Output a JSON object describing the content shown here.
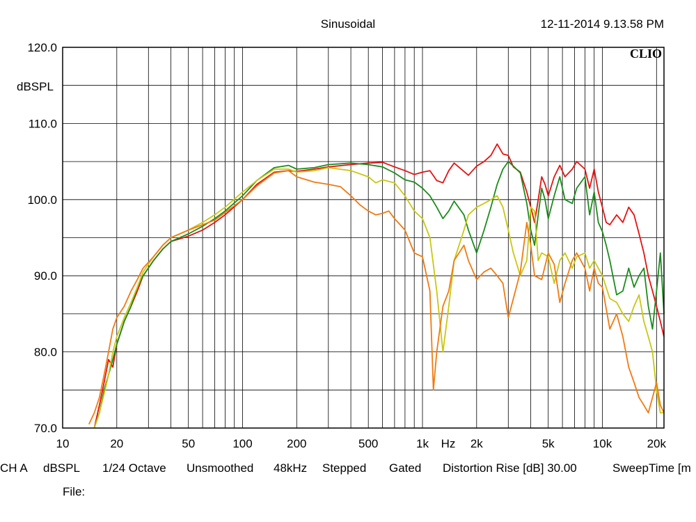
{
  "header": {
    "title": "Sinusoidal",
    "timestamp": "12-11-2014 9.13.58 PM",
    "logo": "CLIO"
  },
  "footer": {
    "status": [
      "CH A",
      "dBSPL",
      "1/24 Octave",
      "Unsmoothed",
      "48kHz",
      "Stepped",
      "Gated",
      "Distortion Rise [dB] 30.00",
      "SweepTime [m"
    ],
    "file_label": "File:"
  },
  "chart_data": {
    "type": "line",
    "title": "Sinusoidal",
    "xlabel": "Hz",
    "ylabel": "dBSPL",
    "xscale": "log",
    "xlim": [
      10,
      22000
    ],
    "ylim": [
      70,
      120
    ],
    "grid": true,
    "x_tick_labels": [
      {
        "value": 10,
        "label": "10"
      },
      {
        "value": 20,
        "label": "20"
      },
      {
        "value": 50,
        "label": "50"
      },
      {
        "value": 100,
        "label": "100"
      },
      {
        "value": 200,
        "label": "200"
      },
      {
        "value": 500,
        "label": "500"
      },
      {
        "value": 1000,
        "label": "1k"
      },
      {
        "value": 2000,
        "label": "2k"
      },
      {
        "value": 5000,
        "label": "5k"
      },
      {
        "value": 10000,
        "label": "10k"
      },
      {
        "value": 20000,
        "label": "20k"
      }
    ],
    "y_tick_labels": [
      {
        "value": 120,
        "label": "120.0"
      },
      {
        "value": 110,
        "label": "110.0"
      },
      {
        "value": 100,
        "label": "100.0"
      },
      {
        "value": 90,
        "label": "90.0"
      },
      {
        "value": 80,
        "label": "80.0"
      },
      {
        "value": 70,
        "label": "70.0"
      }
    ],
    "series": [
      {
        "color": "#e81010",
        "points": [
          [
            15,
            70
          ],
          [
            16,
            73
          ],
          [
            17,
            76
          ],
          [
            18,
            79
          ],
          [
            19,
            78
          ],
          [
            20,
            81
          ],
          [
            22,
            84
          ],
          [
            24,
            86
          ],
          [
            26,
            88
          ],
          [
            28,
            90
          ],
          [
            32,
            92
          ],
          [
            36,
            93.5
          ],
          [
            40,
            94.5
          ],
          [
            50,
            95.2
          ],
          [
            60,
            96
          ],
          [
            70,
            97
          ],
          [
            80,
            98
          ],
          [
            100,
            100
          ],
          [
            120,
            102
          ],
          [
            150,
            103.6
          ],
          [
            180,
            103.8
          ],
          [
            200,
            103.7
          ],
          [
            250,
            104
          ],
          [
            300,
            104.3
          ],
          [
            400,
            104.6
          ],
          [
            500,
            104.8
          ],
          [
            600,
            104.9
          ],
          [
            700,
            104.3
          ],
          [
            800,
            103.8
          ],
          [
            900,
            103.3
          ],
          [
            1000,
            103.6
          ],
          [
            1100,
            103.8
          ],
          [
            1200,
            102.5
          ],
          [
            1300,
            102.2
          ],
          [
            1400,
            103.8
          ],
          [
            1500,
            104.8
          ],
          [
            1700,
            103.7
          ],
          [
            1800,
            103.2
          ],
          [
            2000,
            104.4
          ],
          [
            2200,
            105
          ],
          [
            2400,
            105.8
          ],
          [
            2600,
            107.3
          ],
          [
            2800,
            106
          ],
          [
            3000,
            105.8
          ],
          [
            3200,
            104.3
          ],
          [
            3500,
            103.6
          ],
          [
            3800,
            101
          ],
          [
            4000,
            99
          ],
          [
            4200,
            97
          ],
          [
            4400,
            100
          ],
          [
            4600,
            103
          ],
          [
            4800,
            102
          ],
          [
            5000,
            100.5
          ],
          [
            5400,
            103
          ],
          [
            5800,
            104.5
          ],
          [
            6200,
            103
          ],
          [
            6800,
            104
          ],
          [
            7200,
            105
          ],
          [
            8000,
            104
          ],
          [
            8500,
            101.5
          ],
          [
            9000,
            104
          ],
          [
            9500,
            101
          ],
          [
            10000,
            99
          ],
          [
            10500,
            97
          ],
          [
            11000,
            96.7
          ],
          [
            12000,
            98
          ],
          [
            13000,
            97
          ],
          [
            14000,
            99
          ],
          [
            15000,
            98
          ],
          [
            16000,
            95.5
          ],
          [
            17000,
            93
          ],
          [
            18000,
            90
          ],
          [
            19000,
            88
          ],
          [
            20000,
            86
          ],
          [
            21000,
            84
          ],
          [
            22000,
            82
          ]
        ]
      },
      {
        "color": "#1a8c1a",
        "points": [
          [
            15,
            70
          ],
          [
            16,
            72
          ],
          [
            17,
            75
          ],
          [
            18,
            77
          ],
          [
            19,
            79
          ],
          [
            20,
            81
          ],
          [
            22,
            84
          ],
          [
            24,
            86
          ],
          [
            26,
            88.5
          ],
          [
            28,
            90
          ],
          [
            32,
            92
          ],
          [
            36,
            93.5
          ],
          [
            40,
            94.5
          ],
          [
            50,
            95.5
          ],
          [
            60,
            96.5
          ],
          [
            70,
            97.5
          ],
          [
            80,
            98.5
          ],
          [
            100,
            100.5
          ],
          [
            120,
            102.5
          ],
          [
            150,
            104.2
          ],
          [
            180,
            104.5
          ],
          [
            200,
            104
          ],
          [
            250,
            104.2
          ],
          [
            300,
            104.6
          ],
          [
            400,
            104.8
          ],
          [
            500,
            104.6
          ],
          [
            600,
            104.3
          ],
          [
            700,
            103.5
          ],
          [
            800,
            102.6
          ],
          [
            900,
            102.3
          ],
          [
            1000,
            101.5
          ],
          [
            1100,
            100.5
          ],
          [
            1200,
            99
          ],
          [
            1300,
            97.5
          ],
          [
            1400,
            98.5
          ],
          [
            1500,
            99.8
          ],
          [
            1700,
            98
          ],
          [
            1800,
            96
          ],
          [
            2000,
            93
          ],
          [
            2200,
            96
          ],
          [
            2400,
            99
          ],
          [
            2600,
            102
          ],
          [
            2800,
            104
          ],
          [
            3000,
            105
          ],
          [
            3200,
            104.4
          ],
          [
            3500,
            103.5
          ],
          [
            3800,
            99.5
          ],
          [
            4000,
            96
          ],
          [
            4200,
            94
          ],
          [
            4400,
            98
          ],
          [
            4600,
            101.5
          ],
          [
            4800,
            100
          ],
          [
            5000,
            97.5
          ],
          [
            5400,
            100.5
          ],
          [
            5800,
            103
          ],
          [
            6200,
            100
          ],
          [
            6800,
            99.5
          ],
          [
            7200,
            101.5
          ],
          [
            8000,
            103
          ],
          [
            8500,
            98
          ],
          [
            9000,
            101
          ],
          [
            9500,
            97
          ],
          [
            10000,
            95.8
          ],
          [
            10500,
            94
          ],
          [
            11000,
            92
          ],
          [
            12000,
            87.5
          ],
          [
            13000,
            88
          ],
          [
            14000,
            91
          ],
          [
            15000,
            88.5
          ],
          [
            16000,
            90
          ],
          [
            17000,
            91
          ],
          [
            18000,
            86
          ],
          [
            19000,
            83
          ],
          [
            20000,
            88
          ],
          [
            21000,
            93
          ],
          [
            22000,
            85
          ]
        ]
      },
      {
        "color": "#c8c810",
        "points": [
          [
            15,
            70
          ],
          [
            16,
            72
          ],
          [
            17,
            74.5
          ],
          [
            18,
            77
          ],
          [
            19,
            80
          ],
          [
            20,
            82
          ],
          [
            22,
            84.5
          ],
          [
            24,
            86.5
          ],
          [
            26,
            88.5
          ],
          [
            28,
            90.5
          ],
          [
            32,
            92.5
          ],
          [
            36,
            94
          ],
          [
            40,
            95
          ],
          [
            50,
            96
          ],
          [
            60,
            97
          ],
          [
            70,
            98
          ],
          [
            80,
            99
          ],
          [
            100,
            101
          ],
          [
            120,
            102.5
          ],
          [
            150,
            104
          ],
          [
            180,
            104
          ],
          [
            200,
            103.6
          ],
          [
            250,
            103.8
          ],
          [
            300,
            104.2
          ],
          [
            400,
            103.8
          ],
          [
            500,
            103
          ],
          [
            550,
            102.2
          ],
          [
            600,
            102.6
          ],
          [
            700,
            102.2
          ],
          [
            800,
            100.5
          ],
          [
            900,
            98.5
          ],
          [
            1000,
            97.5
          ],
          [
            1100,
            95
          ],
          [
            1200,
            88
          ],
          [
            1300,
            80
          ],
          [
            1400,
            86
          ],
          [
            1500,
            92
          ],
          [
            1700,
            96
          ],
          [
            1800,
            98
          ],
          [
            2000,
            99
          ],
          [
            2200,
            99.5
          ],
          [
            2400,
            100
          ],
          [
            2600,
            100.5
          ],
          [
            2800,
            99
          ],
          [
            3000,
            96
          ],
          [
            3200,
            93
          ],
          [
            3500,
            90
          ],
          [
            3800,
            92
          ],
          [
            4000,
            99
          ],
          [
            4200,
            98.5
          ],
          [
            4400,
            92
          ],
          [
            4600,
            93
          ],
          [
            5000,
            92.5
          ],
          [
            5400,
            89
          ],
          [
            5800,
            92
          ],
          [
            6200,
            93
          ],
          [
            6800,
            91
          ],
          [
            7200,
            92.5
          ],
          [
            8000,
            93
          ],
          [
            8500,
            91
          ],
          [
            9000,
            92
          ],
          [
            10000,
            90
          ],
          [
            11000,
            87
          ],
          [
            12000,
            86.5
          ],
          [
            13000,
            85
          ],
          [
            14000,
            84
          ],
          [
            15000,
            86
          ],
          [
            16000,
            87.5
          ],
          [
            17000,
            84
          ],
          [
            18000,
            82
          ],
          [
            19000,
            80
          ],
          [
            20000,
            75
          ],
          [
            21000,
            72
          ],
          [
            22000,
            72
          ]
        ]
      },
      {
        "color": "#f07a10",
        "points": [
          [
            14,
            70.5
          ],
          [
            15,
            72
          ],
          [
            16,
            74
          ],
          [
            17,
            77
          ],
          [
            18,
            80
          ],
          [
            19,
            83
          ],
          [
            20,
            84.5
          ],
          [
            22,
            86
          ],
          [
            24,
            88
          ],
          [
            26,
            89.5
          ],
          [
            28,
            91
          ],
          [
            32,
            92.5
          ],
          [
            36,
            94
          ],
          [
            40,
            95
          ],
          [
            50,
            96
          ],
          [
            60,
            96.7
          ],
          [
            70,
            97.3
          ],
          [
            80,
            98.3
          ],
          [
            100,
            100
          ],
          [
            120,
            101.8
          ],
          [
            150,
            103.5
          ],
          [
            180,
            103.8
          ],
          [
            200,
            103
          ],
          [
            250,
            102.3
          ],
          [
            300,
            102
          ],
          [
            350,
            101.7
          ],
          [
            400,
            100.5
          ],
          [
            450,
            99.3
          ],
          [
            500,
            98.5
          ],
          [
            550,
            98
          ],
          [
            600,
            98.2
          ],
          [
            650,
            98.5
          ],
          [
            700,
            97.5
          ],
          [
            800,
            96
          ],
          [
            900,
            93
          ],
          [
            1000,
            92.5
          ],
          [
            1100,
            88
          ],
          [
            1150,
            75
          ],
          [
            1200,
            80
          ],
          [
            1300,
            86
          ],
          [
            1400,
            88
          ],
          [
            1500,
            92
          ],
          [
            1700,
            94
          ],
          [
            1800,
            92
          ],
          [
            2000,
            89.5
          ],
          [
            2200,
            90.5
          ],
          [
            2400,
            91
          ],
          [
            2600,
            90
          ],
          [
            2800,
            89
          ],
          [
            3000,
            84.5
          ],
          [
            3200,
            87
          ],
          [
            3500,
            90.5
          ],
          [
            3800,
            97
          ],
          [
            4000,
            94
          ],
          [
            4200,
            90
          ],
          [
            4600,
            89.5
          ],
          [
            5000,
            93
          ],
          [
            5400,
            91.5
          ],
          [
            5800,
            86.5
          ],
          [
            6200,
            89
          ],
          [
            6800,
            92
          ],
          [
            7200,
            93
          ],
          [
            8000,
            91
          ],
          [
            8500,
            88
          ],
          [
            9000,
            91
          ],
          [
            9500,
            89
          ],
          [
            10000,
            88.5
          ],
          [
            11000,
            83
          ],
          [
            12000,
            85
          ],
          [
            13000,
            82
          ],
          [
            14000,
            78
          ],
          [
            15000,
            76
          ],
          [
            16000,
            74
          ],
          [
            17000,
            73
          ],
          [
            18000,
            72
          ],
          [
            19000,
            74
          ],
          [
            20000,
            76
          ],
          [
            21000,
            73
          ],
          [
            22000,
            72
          ]
        ]
      }
    ]
  }
}
